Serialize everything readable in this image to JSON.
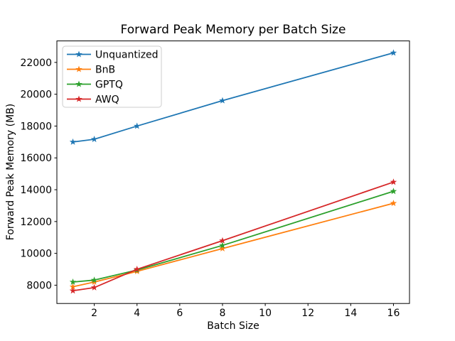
{
  "chart_data": {
    "type": "line",
    "title": "Forward Peak Memory per Batch Size",
    "xlabel": "Batch Size",
    "ylabel": "Forward Peak Memory (MB)",
    "x": [
      1,
      2,
      4,
      8,
      16
    ],
    "series": [
      {
        "name": "Unquantized",
        "color": "#1f77b4",
        "values": [
          17000,
          17170,
          18000,
          19600,
          22600
        ]
      },
      {
        "name": "BnB",
        "color": "#ff7f0e",
        "values": [
          7900,
          8200,
          8870,
          10300,
          13150
        ]
      },
      {
        "name": "GPTQ",
        "color": "#2ca02c",
        "values": [
          8200,
          8320,
          8950,
          10500,
          13900
        ]
      },
      {
        "name": "AWQ",
        "color": "#d62728",
        "values": [
          7650,
          7850,
          9000,
          10800,
          14480
        ]
      }
    ],
    "xlim": [
      0.25,
      16.75
    ],
    "ylim": [
      6850,
      23350
    ],
    "xticks": [
      2,
      4,
      6,
      8,
      10,
      12,
      14,
      16
    ],
    "yticks": [
      8000,
      10000,
      12000,
      14000,
      16000,
      18000,
      20000,
      22000
    ],
    "marker": "star",
    "legend_position": "upper-left",
    "grid": false,
    "spine_color": "#000000",
    "legend_border_color": "#cccccc",
    "legend_bg_color": "#ffffff"
  }
}
